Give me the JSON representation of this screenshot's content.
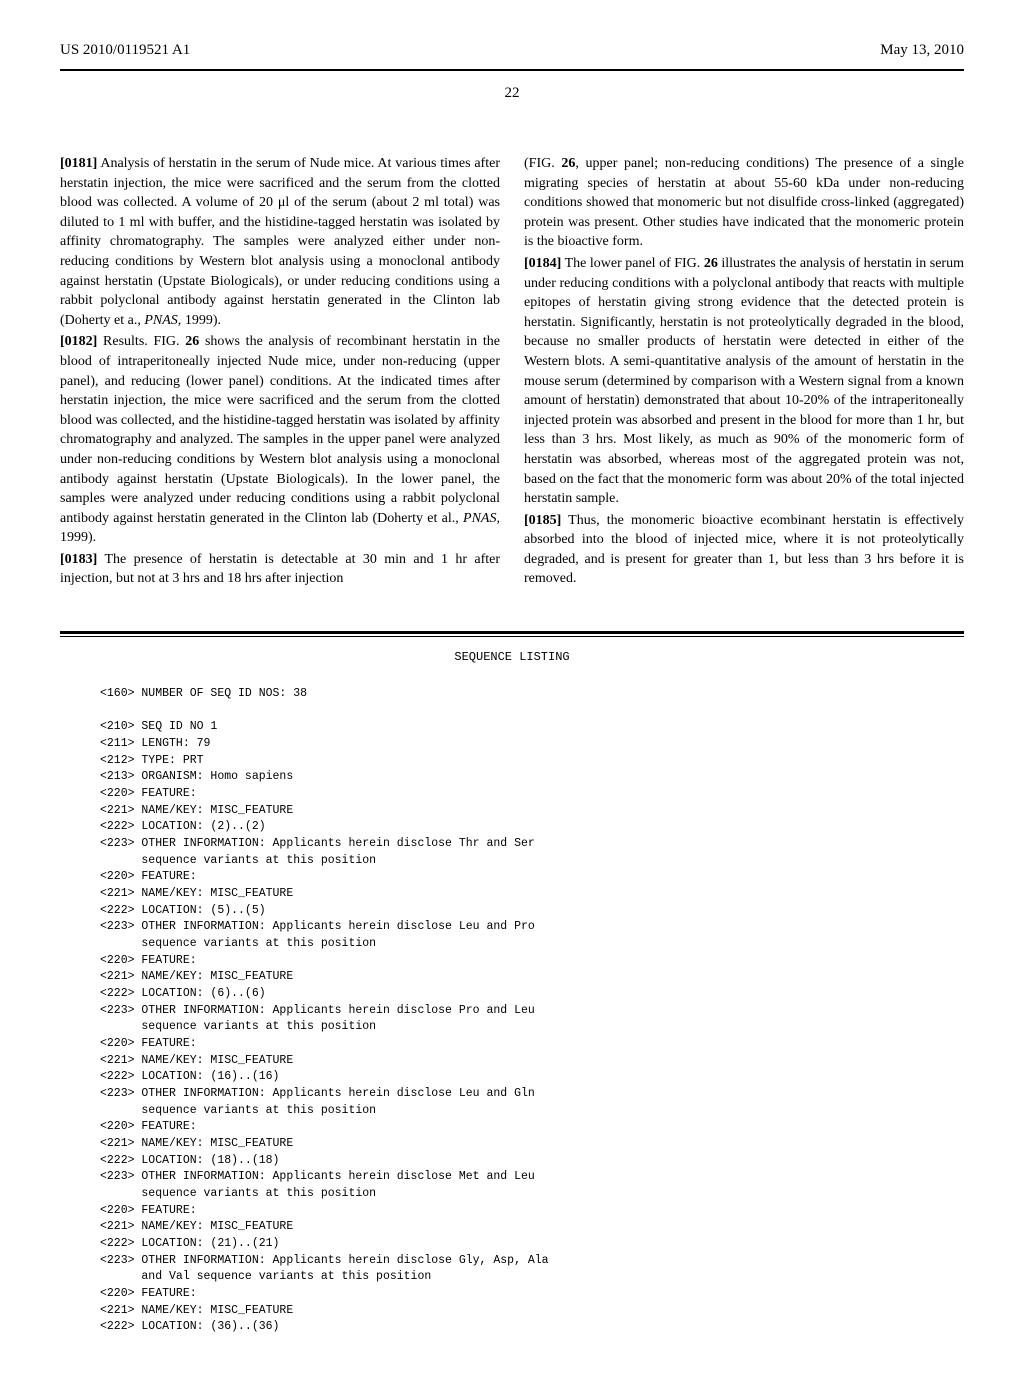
{
  "header": {
    "pub_number": "US 2010/0119521 A1",
    "pub_date": "May 13, 2010",
    "page_number": "22"
  },
  "left_column": {
    "p181_num": "[0181]",
    "p181_text": "    Analysis of herstatin in the serum of Nude mice. At various times after herstatin injection, the mice were sacrificed and the serum from the clotted blood was collected. A volume of 20 μl of the serum (about 2 ml total) was diluted to 1 ml with buffer, and the histidine-tagged herstatin was isolated by affinity chromatography. The samples were analyzed either under non-reducing conditions by Western blot analysis using a monoclonal antibody against herstatin (Upstate Biologicals), or under reducing conditions using a rabbit polyclonal antibody against herstatin generated in the Clinton lab (Doherty et a., ",
    "p181_italic": "PNAS,",
    "p181_text2": " 1999).",
    "p182_num": "[0182]",
    "p182_text": "    Results. FIG. ",
    "p182_bold": "26",
    "p182_text2": " shows the analysis of recombinant herstatin in the blood of intraperitoneally injected Nude mice, under non-reducing (upper panel), and reducing (lower panel) conditions. At the indicated times after herstatin injection, the mice were sacrificed and the serum from the clotted blood was collected, and the histidine-tagged herstatin was isolated by affinity chromatography and analyzed. The samples in the upper panel were analyzed under non-reducing conditions by Western blot analysis using a monoclonal antibody against herstatin (Upstate Biologicals). In the lower panel, the samples were analyzed under reducing conditions using a rabbit polyclonal antibody against herstatin generated in the Clinton lab (Doherty et al., ",
    "p182_italic": "PNAS,",
    "p182_text3": " 1999).",
    "p183_num": "[0183]",
    "p183_text": "    The presence of herstatin is detectable at 30 min and 1 hr after injection, but not at 3 hrs and 18 hrs after injection"
  },
  "right_column": {
    "p183_cont": "(FIG. ",
    "p183_bold": "26",
    "p183_cont2": ", upper panel; non-reducing conditions) The presence of a single migrating species of herstatin at about 55-60 kDa under non-reducing conditions showed that monomeric but not disulfide cross-linked (aggregated) protein was present. Other studies have indicated that the monomeric protein is the bioactive form.",
    "p184_num": "[0184]",
    "p184_text": "    The lower panel of FIG. ",
    "p184_bold": "26",
    "p184_text2": " illustrates the analysis of herstatin in serum under reducing conditions with a polyclonal antibody that reacts with multiple epitopes of herstatin giving strong evidence that the detected protein is herstatin. Significantly, herstatin is not proteolytically degraded in the blood, because no smaller products of herstatin were detected in either of the Western blots. A semi-quantitative analysis of the amount of herstatin in the mouse serum (determined by comparison with a Western signal from a known amount of herstatin) demonstrated that about 10-20% of the intraperitoneally injected protein was absorbed and present in the blood for more than 1 hr, but less than 3 hrs. Most likely, as much as 90% of the monomeric form of herstatin was absorbed, whereas most of the aggregated protein was not, based on the fact that the monomeric form was about 20% of the total injected herstatin sample.",
    "p185_num": "[0185]",
    "p185_text": "    Thus, the monomeric bioactive ecombinant herstatin is effectively absorbed into the blood of injected mice, where it is not proteolytically degraded, and is present for greater than 1, but less than 3 hrs before it is removed."
  },
  "sequence": {
    "title": "SEQUENCE LISTING",
    "lines": [
      "<160> NUMBER OF SEQ ID NOS: 38",
      "",
      "<210> SEQ ID NO 1",
      "<211> LENGTH: 79",
      "<212> TYPE: PRT",
      "<213> ORGANISM: Homo sapiens",
      "<220> FEATURE:",
      "<221> NAME/KEY: MISC_FEATURE",
      "<222> LOCATION: (2)..(2)",
      "<223> OTHER INFORMATION: Applicants herein disclose Thr and Ser",
      "      sequence variants at this position",
      "<220> FEATURE:",
      "<221> NAME/KEY: MISC_FEATURE",
      "<222> LOCATION: (5)..(5)",
      "<223> OTHER INFORMATION: Applicants herein disclose Leu and Pro",
      "      sequence variants at this position",
      "<220> FEATURE:",
      "<221> NAME/KEY: MISC_FEATURE",
      "<222> LOCATION: (6)..(6)",
      "<223> OTHER INFORMATION: Applicants herein disclose Pro and Leu",
      "      sequence variants at this position",
      "<220> FEATURE:",
      "<221> NAME/KEY: MISC_FEATURE",
      "<222> LOCATION: (16)..(16)",
      "<223> OTHER INFORMATION: Applicants herein disclose Leu and Gln",
      "      sequence variants at this position",
      "<220> FEATURE:",
      "<221> NAME/KEY: MISC_FEATURE",
      "<222> LOCATION: (18)..(18)",
      "<223> OTHER INFORMATION: Applicants herein disclose Met and Leu",
      "      sequence variants at this position",
      "<220> FEATURE:",
      "<221> NAME/KEY: MISC_FEATURE",
      "<222> LOCATION: (21)..(21)",
      "<223> OTHER INFORMATION: Applicants herein disclose Gly, Asp, Ala",
      "      and Val sequence variants at this position",
      "<220> FEATURE:",
      "<221> NAME/KEY: MISC_FEATURE",
      "<222> LOCATION: (36)..(36)"
    ]
  }
}
